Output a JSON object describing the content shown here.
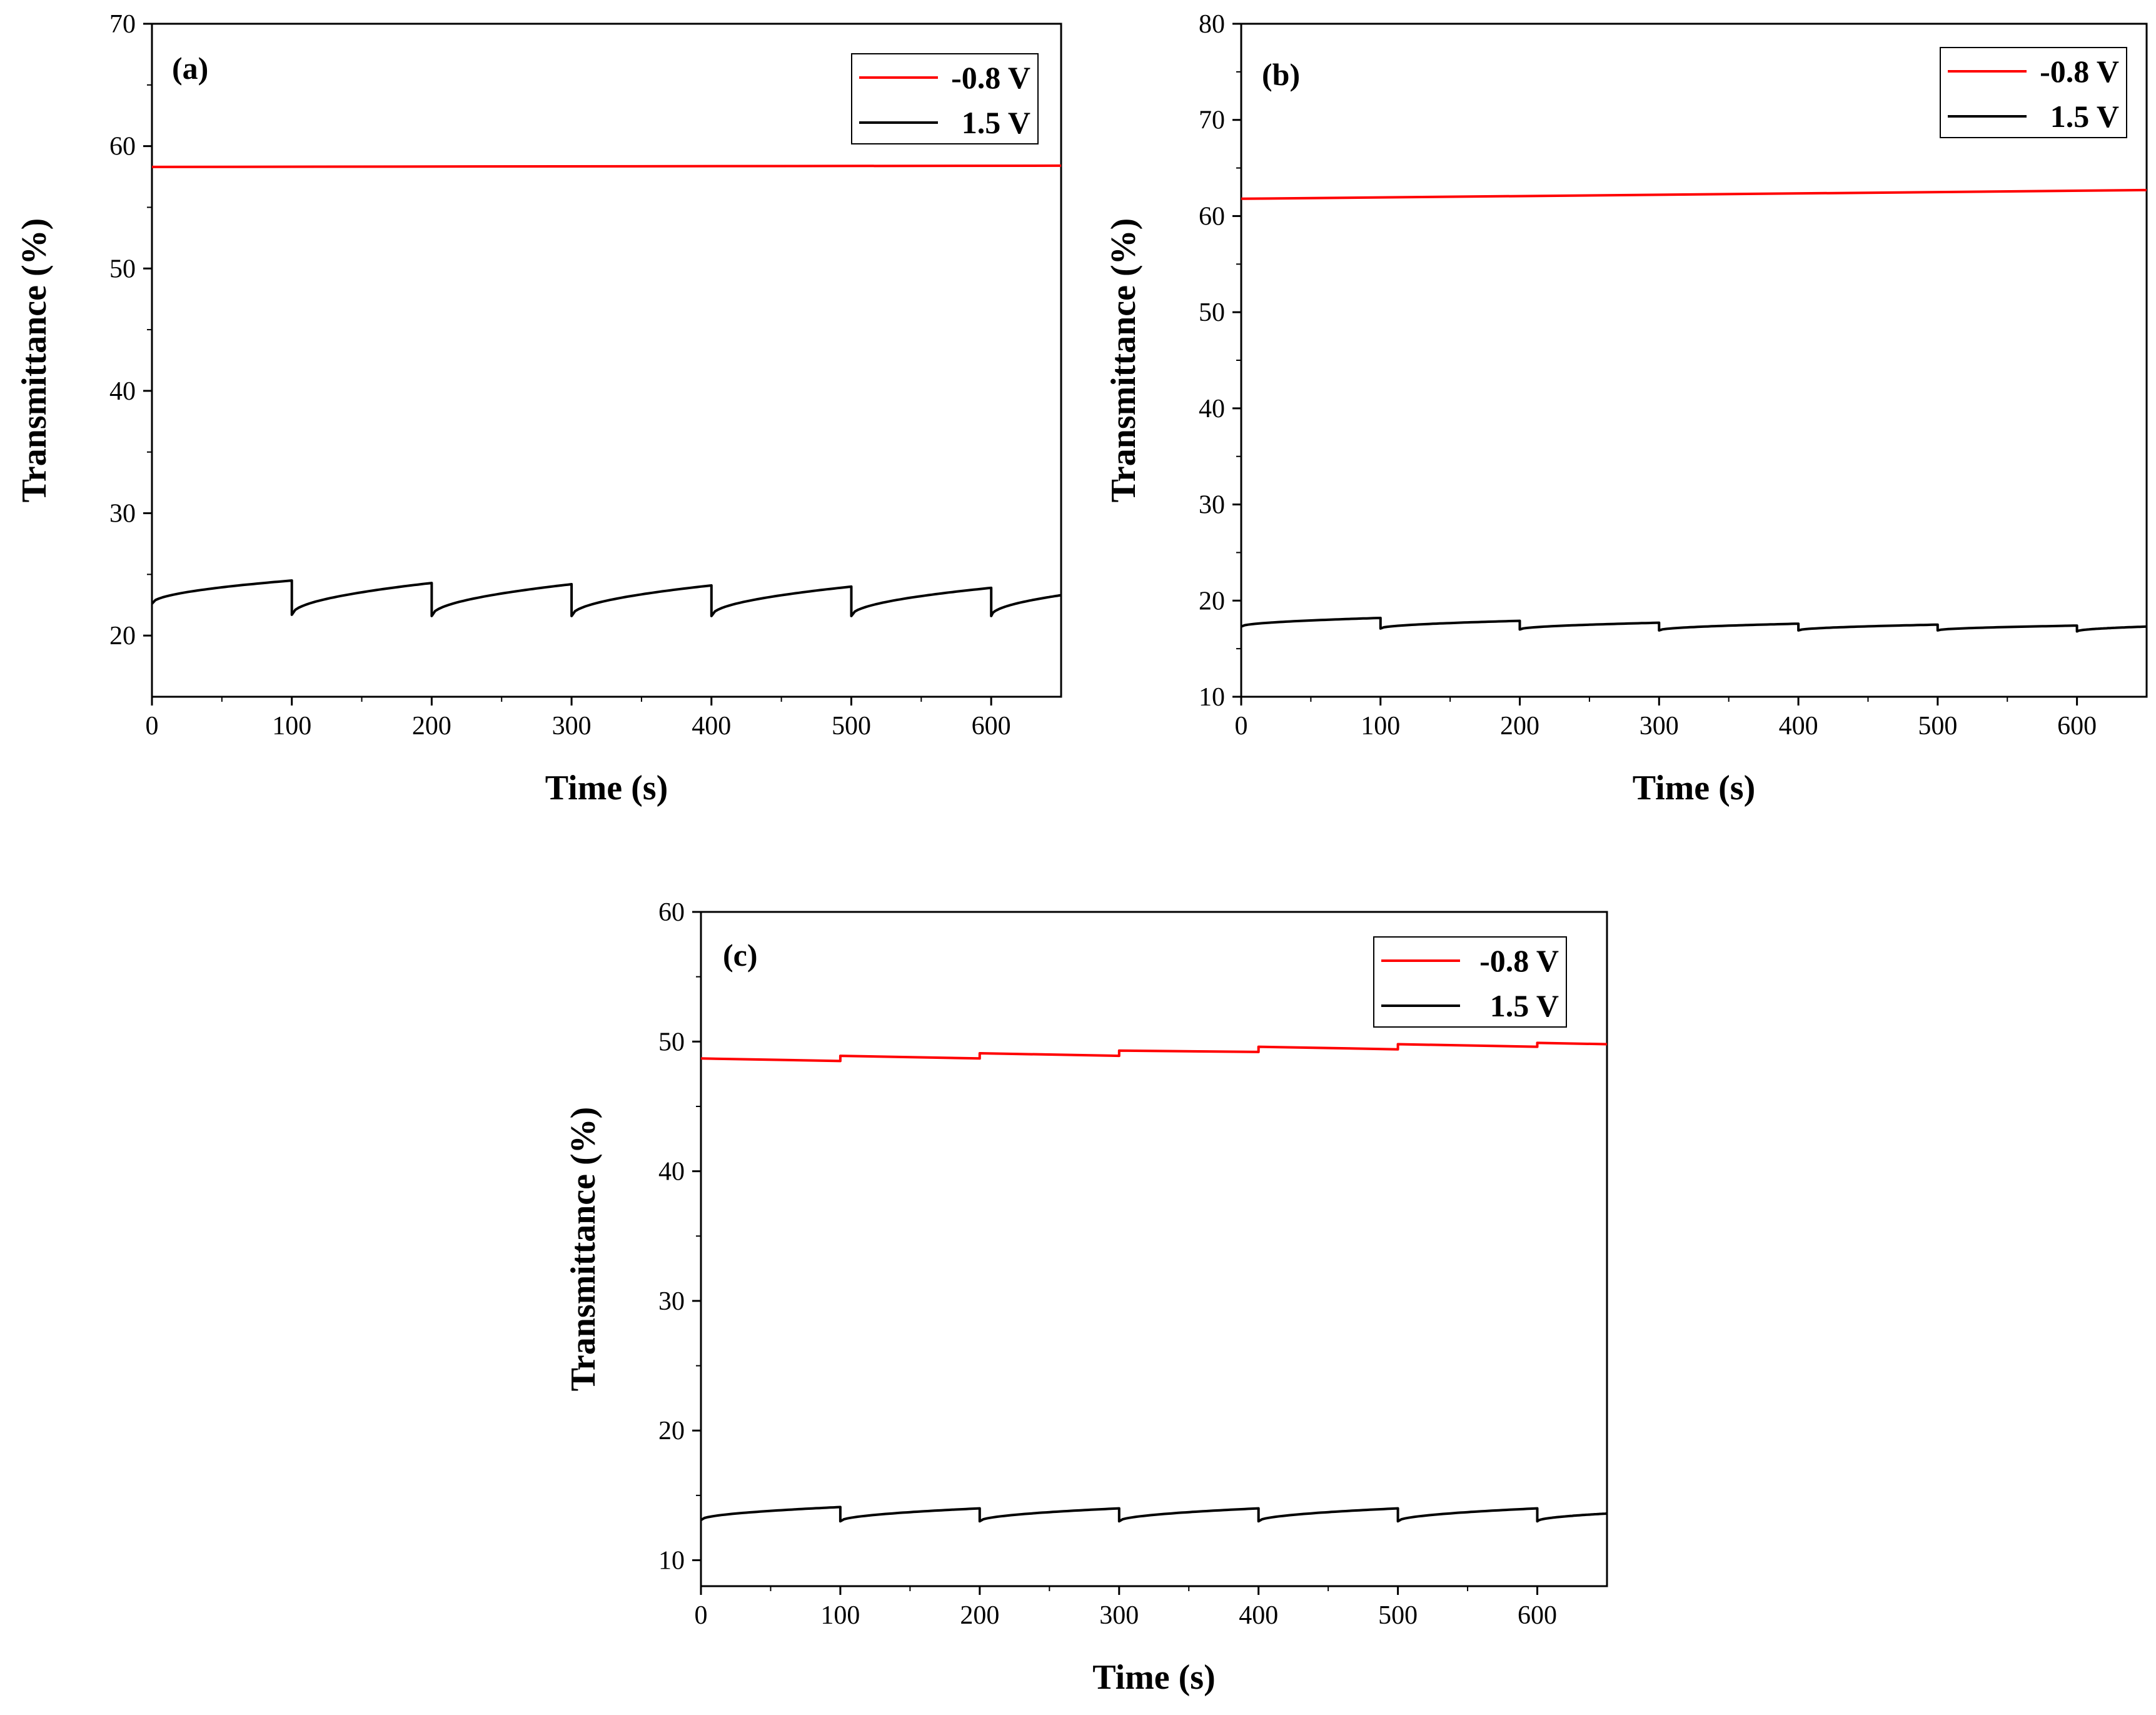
{
  "chart_data": [
    {
      "type": "line",
      "panel_label": "(a)",
      "xlabel": "Time (s)",
      "ylabel": "Transmittance (%)",
      "xlim": [
        0,
        650
      ],
      "ylim": [
        15,
        70
      ],
      "xticks": [
        0,
        100,
        200,
        300,
        400,
        500,
        600
      ],
      "yticks": [
        20,
        30,
        40,
        50,
        60,
        70
      ],
      "legend_position": "top-right",
      "series": [
        {
          "name": "-0.8 V",
          "color": "#ff0000",
          "shape": "flat",
          "x": [
            0,
            650
          ],
          "y": [
            58.3,
            58.4
          ]
        },
        {
          "name": "1.5 V",
          "color": "#000000",
          "shape": "sawtooth",
          "period": 100,
          "start_values": [
            22.6,
            21.7,
            21.6,
            21.6,
            21.6,
            21.6,
            21.6
          ],
          "end_values": [
            24.5,
            24.3,
            24.2,
            24.1,
            24.0,
            23.9,
            23.3
          ]
        }
      ]
    },
    {
      "type": "line",
      "panel_label": "(b)",
      "xlabel": "Time (s)",
      "ylabel": "Transmittance (%)",
      "xlim": [
        0,
        650
      ],
      "ylim": [
        10,
        80
      ],
      "xticks": [
        0,
        100,
        200,
        300,
        400,
        500,
        600
      ],
      "yticks": [
        10,
        20,
        30,
        40,
        50,
        60,
        70,
        80
      ],
      "legend_position": "top-right",
      "series": [
        {
          "name": "-0.8 V",
          "color": "#ff0000",
          "shape": "flat",
          "x": [
            0,
            650
          ],
          "y": [
            61.8,
            62.7
          ]
        },
        {
          "name": "1.5 V",
          "color": "#000000",
          "shape": "sawtooth",
          "period": 100,
          "start_values": [
            17.3,
            17.1,
            17.0,
            16.9,
            16.9,
            16.9,
            16.8
          ],
          "end_values": [
            18.2,
            17.9,
            17.7,
            17.6,
            17.5,
            17.4,
            17.3
          ]
        }
      ]
    },
    {
      "type": "line",
      "panel_label": "(c)",
      "xlabel": "Time (s)",
      "ylabel": "Transmittance (%)",
      "xlim": [
        0,
        650
      ],
      "ylim": [
        8,
        60
      ],
      "xticks": [
        0,
        100,
        200,
        300,
        400,
        500,
        600
      ],
      "yticks": [
        10,
        20,
        30,
        40,
        50,
        60
      ],
      "legend_position": "top-right",
      "series": [
        {
          "name": "-0.8 V",
          "color": "#ff0000",
          "shape": "flat",
          "x": [
            0,
            100,
            100,
            200,
            200,
            300,
            300,
            400,
            400,
            500,
            500,
            600,
            600,
            650
          ],
          "y": [
            48.7,
            48.5,
            48.9,
            48.7,
            49.1,
            48.9,
            49.3,
            49.2,
            49.6,
            49.4,
            49.8,
            49.6,
            49.9,
            49.8
          ]
        },
        {
          "name": "1.5 V",
          "color": "#000000",
          "shape": "sawtooth",
          "period": 100,
          "start_values": [
            13.1,
            13.0,
            13.0,
            13.0,
            13.0,
            13.0,
            13.0
          ],
          "end_values": [
            14.1,
            14.0,
            14.0,
            14.0,
            14.0,
            14.0,
            13.6
          ]
        }
      ]
    }
  ]
}
